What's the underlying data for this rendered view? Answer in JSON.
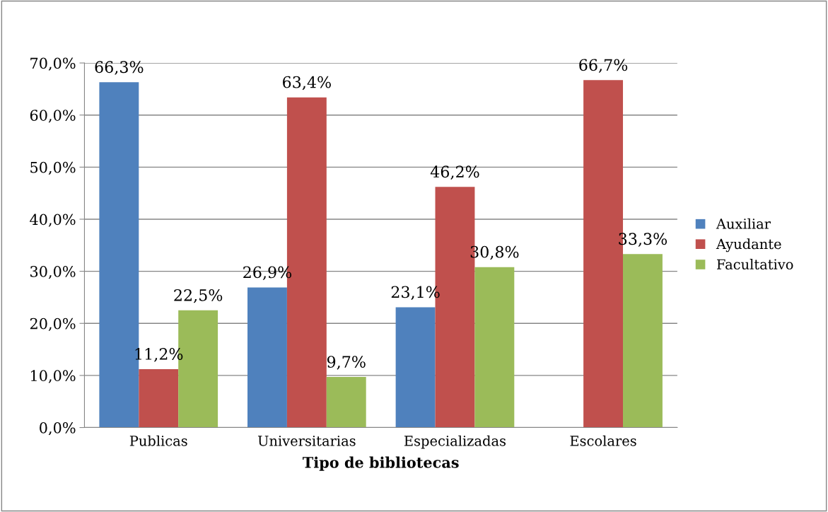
{
  "chart_data": {
    "type": "bar",
    "xlabel": "Tipo de bibliotecas",
    "categories": [
      "Publicas",
      "Universitarias",
      "Especializadas",
      "Escolares"
    ],
    "series": [
      {
        "name": "Auxiliar",
        "color": "#4f81bd",
        "values": [
          66.3,
          26.9,
          23.1,
          null
        ],
        "value_labels": [
          "66,3%",
          "26,9%",
          "23,1%",
          null
        ]
      },
      {
        "name": "Ayudante",
        "color": "#c0504d",
        "values": [
          11.2,
          63.4,
          46.2,
          66.7
        ],
        "value_labels": [
          "11,2%",
          "63,4%",
          "46,2%",
          "66,7%"
        ]
      },
      {
        "name": "Facultativo",
        "color": "#9bbb59",
        "values": [
          22.5,
          9.7,
          30.8,
          33.3
        ],
        "value_labels": [
          "22,5%",
          "9,7%",
          "30,8%",
          "33,3%"
        ]
      }
    ],
    "ylim": [
      0,
      70
    ],
    "yticks": [
      {
        "value": 0,
        "label": "0,0%"
      },
      {
        "value": 10,
        "label": "10,0%"
      },
      {
        "value": 20,
        "label": "20,0%"
      },
      {
        "value": 30,
        "label": "30,0%"
      },
      {
        "value": 40,
        "label": "40,0%"
      },
      {
        "value": 50,
        "label": "50,0%"
      },
      {
        "value": 60,
        "label": "60,0%"
      },
      {
        "value": 70,
        "label": "70,0%"
      }
    ],
    "grid": "y",
    "legend": "right"
  }
}
